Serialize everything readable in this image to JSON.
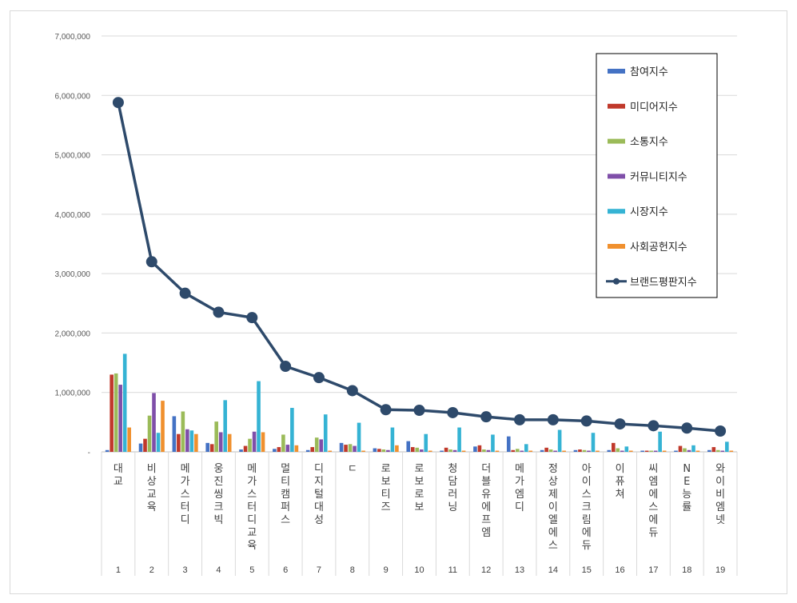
{
  "chart_data": {
    "type": "bar",
    "ylim": [
      0,
      7000000
    ],
    "yticks": [
      "-",
      "1,000,000",
      "2,000,000",
      "3,000,000",
      "4,000,000",
      "5,000,000",
      "6,000,000",
      "7,000,000"
    ],
    "grid": true,
    "legend_position": "top-right",
    "categories": [
      "대교",
      "비상교육",
      "메가스터디",
      "웅진씽크빅",
      "메가스터디교육",
      "멀티캠퍼스",
      "디지털대성",
      "ㄷ",
      "로보티즈",
      "로보로보",
      "청담러닝",
      "더블유에프엠",
      "메가엠디",
      "정상제이엘에스",
      "아이스크림에듀",
      "이퓨쳐",
      "씨엠에스에듀",
      "NE능률",
      "와이비엠넷"
    ],
    "ranks": [
      "1",
      "2",
      "3",
      "4",
      "5",
      "6",
      "7",
      "8",
      "9",
      "10",
      "11",
      "12",
      "13",
      "14",
      "15",
      "16",
      "17",
      "18",
      "19"
    ],
    "series": [
      {
        "name": "참여지수",
        "type": "bar",
        "color": "#4472c4",
        "values": [
          30000,
          140000,
          600000,
          150000,
          40000,
          50000,
          30000,
          150000,
          60000,
          180000,
          20000,
          90000,
          260000,
          30000,
          30000,
          30000,
          20000,
          20000,
          30000
        ]
      },
      {
        "name": "미디어지수",
        "type": "bar",
        "color": "#c0392b",
        "values": [
          1300000,
          220000,
          300000,
          130000,
          100000,
          80000,
          80000,
          120000,
          50000,
          80000,
          70000,
          110000,
          30000,
          70000,
          40000,
          150000,
          20000,
          100000,
          80000
        ]
      },
      {
        "name": "소통지수",
        "type": "bar",
        "color": "#9bbb59",
        "values": [
          1320000,
          610000,
          680000,
          510000,
          220000,
          290000,
          240000,
          130000,
          40000,
          70000,
          40000,
          40000,
          50000,
          40000,
          30000,
          60000,
          20000,
          60000,
          30000
        ]
      },
      {
        "name": "커뮤니티지수",
        "type": "bar",
        "color": "#7f4fa9",
        "values": [
          1130000,
          990000,
          380000,
          330000,
          340000,
          120000,
          210000,
          100000,
          30000,
          40000,
          30000,
          30000,
          20000,
          20000,
          20000,
          20000,
          20000,
          30000,
          20000
        ]
      },
      {
        "name": "시장지수",
        "type": "bar",
        "color": "#35b3d4",
        "values": [
          1650000,
          320000,
          360000,
          870000,
          1190000,
          740000,
          630000,
          490000,
          410000,
          300000,
          410000,
          290000,
          130000,
          370000,
          320000,
          90000,
          340000,
          110000,
          170000
        ]
      },
      {
        "name": "사회공헌지수",
        "type": "bar",
        "color": "#f0902e",
        "values": [
          410000,
          860000,
          300000,
          300000,
          330000,
          110000,
          20000,
          20000,
          110000,
          20000,
          20000,
          20000,
          20000,
          20000,
          20000,
          20000,
          20000,
          20000,
          20000
        ]
      },
      {
        "name": "브랜드평판지수",
        "type": "line",
        "color": "#2e4a6b",
        "values": [
          5880000,
          3200000,
          2670000,
          2350000,
          2260000,
          1440000,
          1250000,
          1030000,
          710000,
          700000,
          660000,
          590000,
          540000,
          540000,
          520000,
          470000,
          440000,
          400000,
          350000
        ]
      }
    ]
  }
}
